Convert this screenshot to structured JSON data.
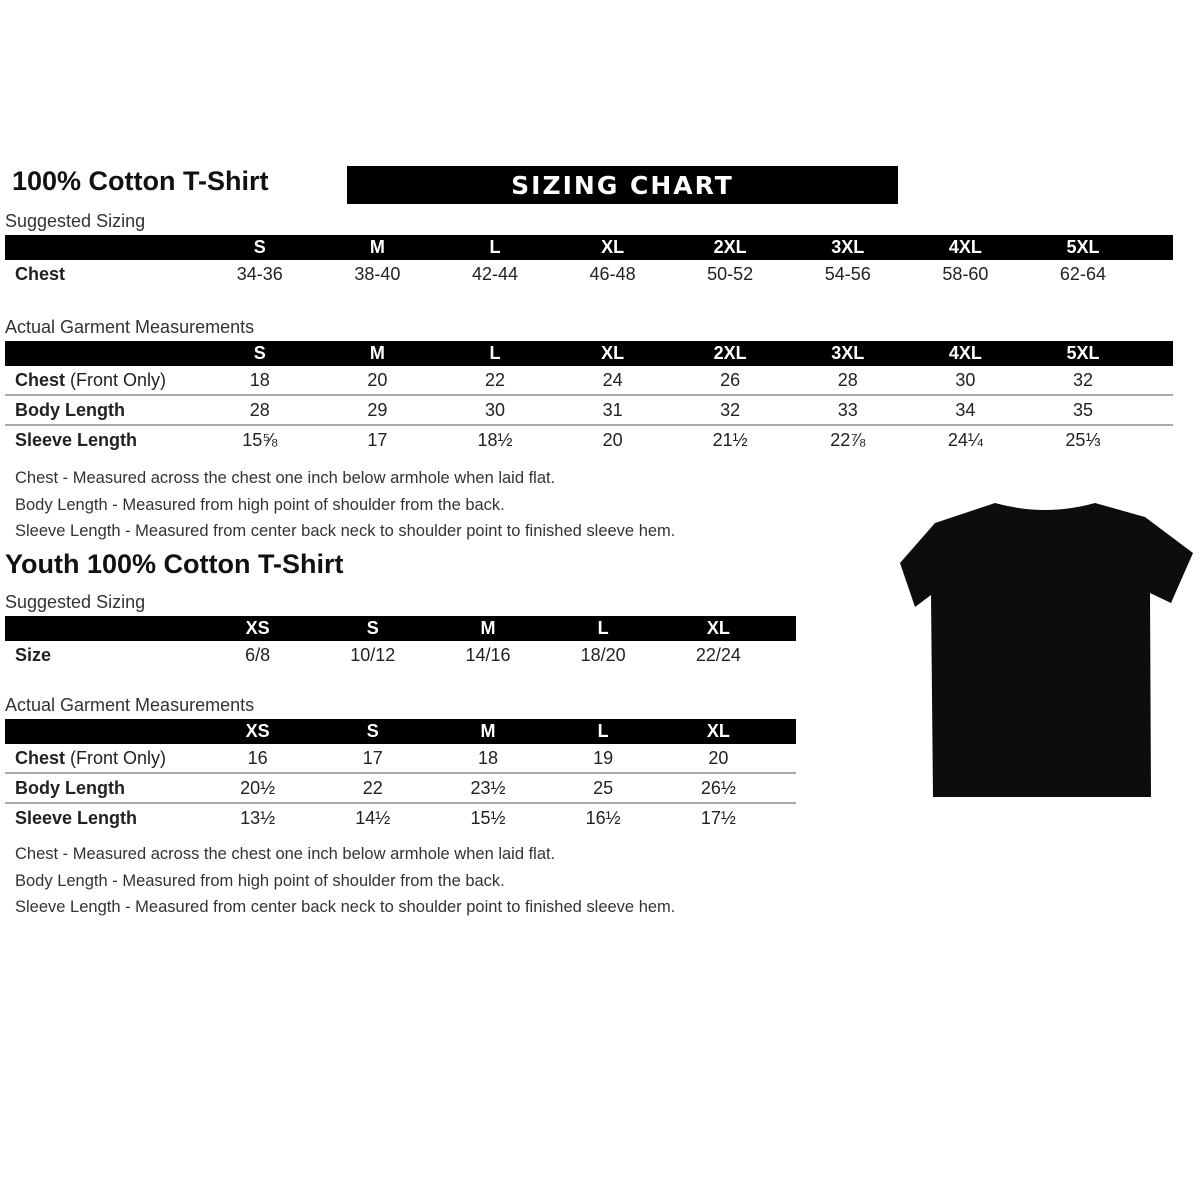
{
  "banner": "SIZING CHART",
  "adult": {
    "title": "100% Cotton T-Shirt",
    "suggested_label": "Suggested Sizing",
    "sizes": [
      "S",
      "M",
      "L",
      "XL",
      "2XL",
      "3XL",
      "4XL",
      "5XL"
    ],
    "suggested_rows": [
      {
        "label": "Chest",
        "values": [
          "34-36",
          "38-40",
          "42-44",
          "46-48",
          "50-52",
          "54-56",
          "58-60",
          "62-64"
        ]
      }
    ],
    "actual_label": "Actual Garment Measurements",
    "actual_rows": [
      {
        "label": "Chest",
        "label_suffix": "(Front Only)",
        "values": [
          "18",
          "20",
          "22",
          "24",
          "26",
          "28",
          "30",
          "32"
        ]
      },
      {
        "label": "Body Length",
        "label_suffix": "",
        "values": [
          "28",
          "29",
          "30",
          "31",
          "32",
          "33",
          "34",
          "35"
        ]
      },
      {
        "label": "Sleeve Length",
        "label_suffix": "",
        "values": [
          "15⅝",
          "17",
          "18½",
          "20",
          "21½",
          "22⅞",
          "24¼",
          "25⅓"
        ]
      }
    ],
    "notes": [
      "Chest - Measured across the chest one inch below armhole when laid flat.",
      "Body Length - Measured from high point of shoulder from the back.",
      "Sleeve Length - Measured from center back neck to shoulder point to finished sleeve hem."
    ]
  },
  "youth": {
    "title": "Youth 100% Cotton T-Shirt",
    "suggested_label": "Suggested Sizing",
    "sizes": [
      "XS",
      "S",
      "M",
      "L",
      "XL"
    ],
    "suggested_rows": [
      {
        "label": "Size",
        "values": [
          "6/8",
          "10/12",
          "14/16",
          "18/20",
          "22/24"
        ]
      }
    ],
    "actual_label": "Actual Garment Measurements",
    "actual_rows": [
      {
        "label": "Chest",
        "label_suffix": "(Front Only)",
        "values": [
          "16",
          "17",
          "18",
          "19",
          "20"
        ]
      },
      {
        "label": "Body Length",
        "label_suffix": "",
        "values": [
          "20½",
          "22",
          "23½",
          "25",
          "26½"
        ]
      },
      {
        "label": "Sleeve Length",
        "label_suffix": "",
        "values": [
          "13½",
          "14½",
          "15½",
          "16½",
          "17½"
        ]
      }
    ],
    "notes": [
      "Chest - Measured across the chest one inch below armhole when laid flat.",
      "Body Length - Measured from high point of shoulder from the back.",
      "Sleeve Length - Measured from center back neck to shoulder point to finished sleeve hem."
    ]
  },
  "tshirt_color": "#0d0d0d"
}
